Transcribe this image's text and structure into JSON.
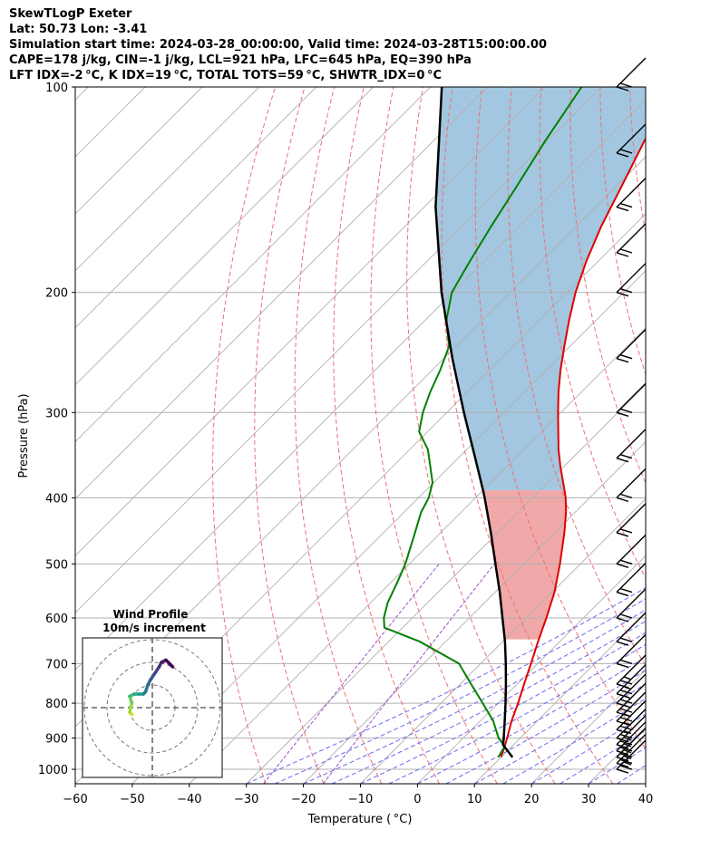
{
  "header": {
    "line1": "SkewTLogP Exeter",
    "line2": "Lat: 50.73   Lon: -3.41",
    "line3": "Simulation start time: 2024-03-28_00:00:00, Valid time: 2024-03-28T15:00:00.00",
    "line4": "CAPE=178 j/kg, CIN=-1 j/kg, LCL=921 hPa, LFC=645 hPa, EQ=390 hPa",
    "line5": "LFT IDX=-2 °C, K IDX=19 °C, TOTAL TOTS=59 °C, SHWTR_IDX=0 °C"
  },
  "chart_data": {
    "type": "line",
    "subtype": "skew-t log-p",
    "xlabel": "Temperature ( °C)",
    "ylabel": "Pressure (hPa)",
    "xlim": [
      -60,
      40
    ],
    "ylim": [
      1050,
      100
    ],
    "y_scale": "log",
    "skew": 45,
    "x_ticks": [
      -60,
      -50,
      -40,
      -30,
      -20,
      -10,
      0,
      10,
      20,
      30,
      40
    ],
    "x_tick_labels": [
      "−60",
      "−50",
      "−40",
      "−30",
      "−20",
      "−10",
      "0",
      "10",
      "20",
      "30",
      "40"
    ],
    "y_ticks": [
      1000,
      900,
      800,
      700,
      600,
      500,
      400,
      300,
      200,
      100
    ],
    "y_tick_labels": [
      "1000",
      "900",
      "800",
      "700",
      "600",
      "500",
      "400",
      "300",
      "200",
      "100"
    ],
    "grid": true,
    "colors": {
      "temperature": "#e00000",
      "dewpoint": "#008000",
      "parcel": "#000000",
      "cape_fill": "#a3c7e0",
      "cin_fill": "#f0a8a8",
      "isotherm": "#b0b0b0",
      "dry_adiabat": "#f07070",
      "moist_adiabat": "#6a6af0",
      "mixing_ratio": "#9a50c8"
    },
    "series": [
      {
        "key": "temperature",
        "p": [
          960,
          925,
          900,
          850,
          800,
          750,
          700,
          650,
          600,
          550,
          500,
          450,
          420,
          400,
          380,
          360,
          340,
          300,
          280,
          260,
          240,
          220,
          200,
          180,
          160,
          140,
          120,
          100
        ],
        "t": [
          10,
          8.7,
          7.7,
          5.5,
          3.5,
          1.2,
          -1.2,
          -3.8,
          -6.5,
          -9.6,
          -13.6,
          -18.3,
          -21.6,
          -24.2,
          -27.3,
          -30.6,
          -33.9,
          -40.5,
          -44.0,
          -47.5,
          -51.0,
          -54.7,
          -58.5,
          -62.1,
          -65.6,
          -69.0,
          -73.0,
          -77.0
        ]
      },
      {
        "key": "dewpoint",
        "p": [
          960,
          925,
          900,
          850,
          800,
          750,
          700,
          650,
          620,
          600,
          570,
          530,
          500,
          450,
          420,
          400,
          380,
          340,
          320,
          300,
          280,
          260,
          240,
          220,
          200,
          180,
          160,
          140,
          120,
          100
        ],
        "t": [
          9.5,
          8.7,
          6.2,
          2.3,
          -2.7,
          -8.1,
          -13.8,
          -24.5,
          -33.2,
          -35.0,
          -37.0,
          -39.0,
          -40.7,
          -44.5,
          -47.0,
          -48.2,
          -50.2,
          -56.8,
          -61.5,
          -64.2,
          -66.5,
          -68.6,
          -71.2,
          -76.2,
          -80.2,
          -82.5,
          -84.9,
          -87.4,
          -90.4,
          -93.5
        ]
      },
      {
        "key": "parcel",
        "p": [
          960,
          921,
          900,
          850,
          800,
          750,
          700,
          650,
          600,
          550,
          500,
          450,
          400,
          390,
          350,
          300,
          250,
          200,
          150,
          100
        ],
        "t": [
          12.0,
          8.2,
          7.1,
          4.3,
          1.3,
          -2.0,
          -5.6,
          -9.6,
          -14.2,
          -19.2,
          -24.9,
          -31.2,
          -38.4,
          -40.0,
          -47.0,
          -57.0,
          -68.5,
          -82.0,
          -98.0,
          -118.0
        ]
      }
    ],
    "cape": 178,
    "cin": -1,
    "lcl_hpa": 921,
    "lfc_hpa": 645,
    "el_hpa": 390,
    "wind_barbs_p": [
      1000,
      980,
      960,
      940,
      920,
      900,
      875,
      850,
      825,
      800,
      775,
      750,
      700,
      650,
      600,
      550,
      500,
      450,
      400,
      350,
      300,
      250,
      200,
      175,
      150,
      125,
      100
    ],
    "wind_profile": {
      "title_line1": "Wind Profile",
      "title_line2": "10m/s increment",
      "u": [
        -9,
        -10,
        -9,
        -10,
        -8,
        -6,
        -4,
        -3,
        -2,
        -1,
        1,
        3,
        4,
        6,
        7,
        8,
        9
      ],
      "v": [
        -3,
        -2,
        2,
        5,
        6,
        6,
        6,
        7,
        10,
        12,
        15,
        18,
        20,
        21,
        20,
        19,
        18
      ]
    }
  }
}
